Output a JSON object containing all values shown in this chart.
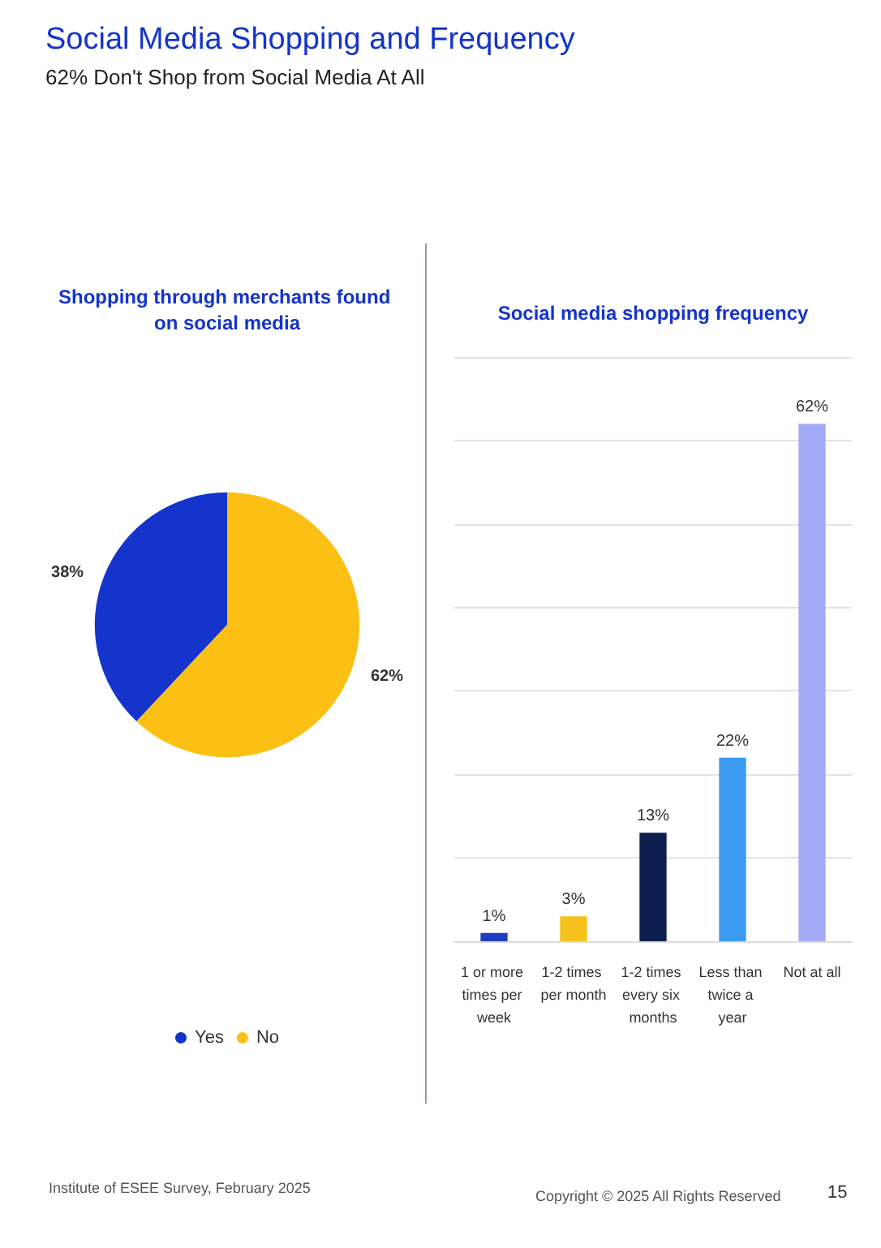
{
  "chart_data": [
    {
      "type": "pie",
      "title": "Shopping through merchants found on social media",
      "categories": [
        "Yes",
        "No"
      ],
      "values": [
        38,
        62
      ],
      "colors": [
        "#1434cb",
        "#fcc015"
      ],
      "value_labels": [
        "38%",
        "62%"
      ],
      "legend": "bottom",
      "annotations": [
        "Social Media Shopping and Frequency",
        "62% Don't Shop from Social Media At All",
        "Institute of ESEE Survey, February 2025",
        "Copyright © 2025 All Rights Reserved",
        "15"
      ]
    },
    {
      "type": "bar",
      "title": "Social media shopping frequency",
      "categories": [
        "1 or more times per week",
        "1-2 times per month",
        "1-2 times every six months",
        "Less than twice a year",
        "Not at all"
      ],
      "values": [
        1,
        3,
        13,
        22,
        62
      ],
      "colors": [
        "#1f3fbf",
        "#f5c21b",
        "#0d1f4f",
        "#3b9af0",
        "#a3aaf5"
      ],
      "value_labels": [
        "1%",
        "3%",
        "13%",
        "22%",
        "62%"
      ],
      "ylim": [
        0,
        70
      ],
      "yticks": [
        {
          "value": 0,
          "label": null
        },
        {
          "value": 10,
          "label": null
        },
        {
          "value": 20,
          "label": null
        },
        {
          "value": 30,
          "label": null
        },
        {
          "value": 40,
          "label": null
        },
        {
          "value": 50,
          "label": null
        },
        {
          "value": 60,
          "label": null
        },
        {
          "value": 70,
          "label": null
        }
      ],
      "grid": "y",
      "tick_labels": "x"
    }
  ]
}
